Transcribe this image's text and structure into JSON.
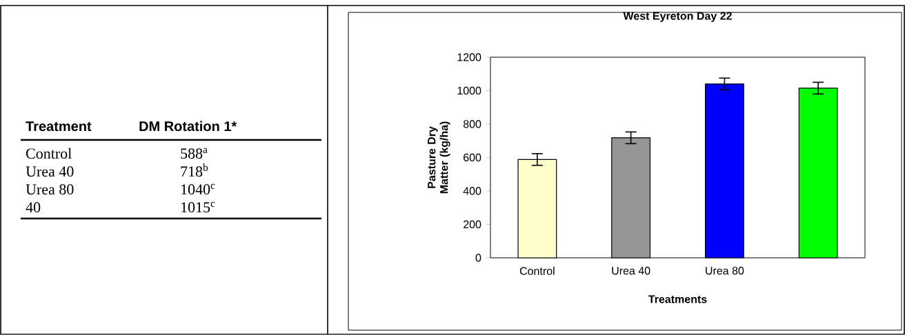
{
  "chart_data": [
    {
      "type": "other",
      "annotations": [
        "Treatment",
        "DM Rotation 1*"
      ],
      "categories": [
        "Control",
        "Urea 40",
        "Urea 80",
        "40"
      ],
      "values": [
        588,
        718,
        1040,
        1015
      ],
      "value_labels": [
        "588$^{a}$",
        "718$^{b}$",
        "1040$^{c}$",
        "1015$^{c}$"
      ]
    },
    {
      "type": "bar",
      "title": "West Eyreton Day 22",
      "xlabel": "Treatments",
      "ylabel": "Pasture Dry Matter (kg/ha)",
      "categories": [
        "Control",
        "Urea 40",
        "Urea 80",
        null
      ],
      "values": [
        588,
        718,
        1040,
        1015
      ],
      "errors": [
        35,
        35,
        35,
        35
      ],
      "colors": [
        "#ffffcc",
        "#969696",
        "#0000ff",
        "#00ff00"
      ],
      "ylim": [
        0,
        1200
      ],
      "yticks": [
        0,
        200,
        400,
        600,
        800,
        1000,
        1200
      ],
      "grid": false
    }
  ]
}
